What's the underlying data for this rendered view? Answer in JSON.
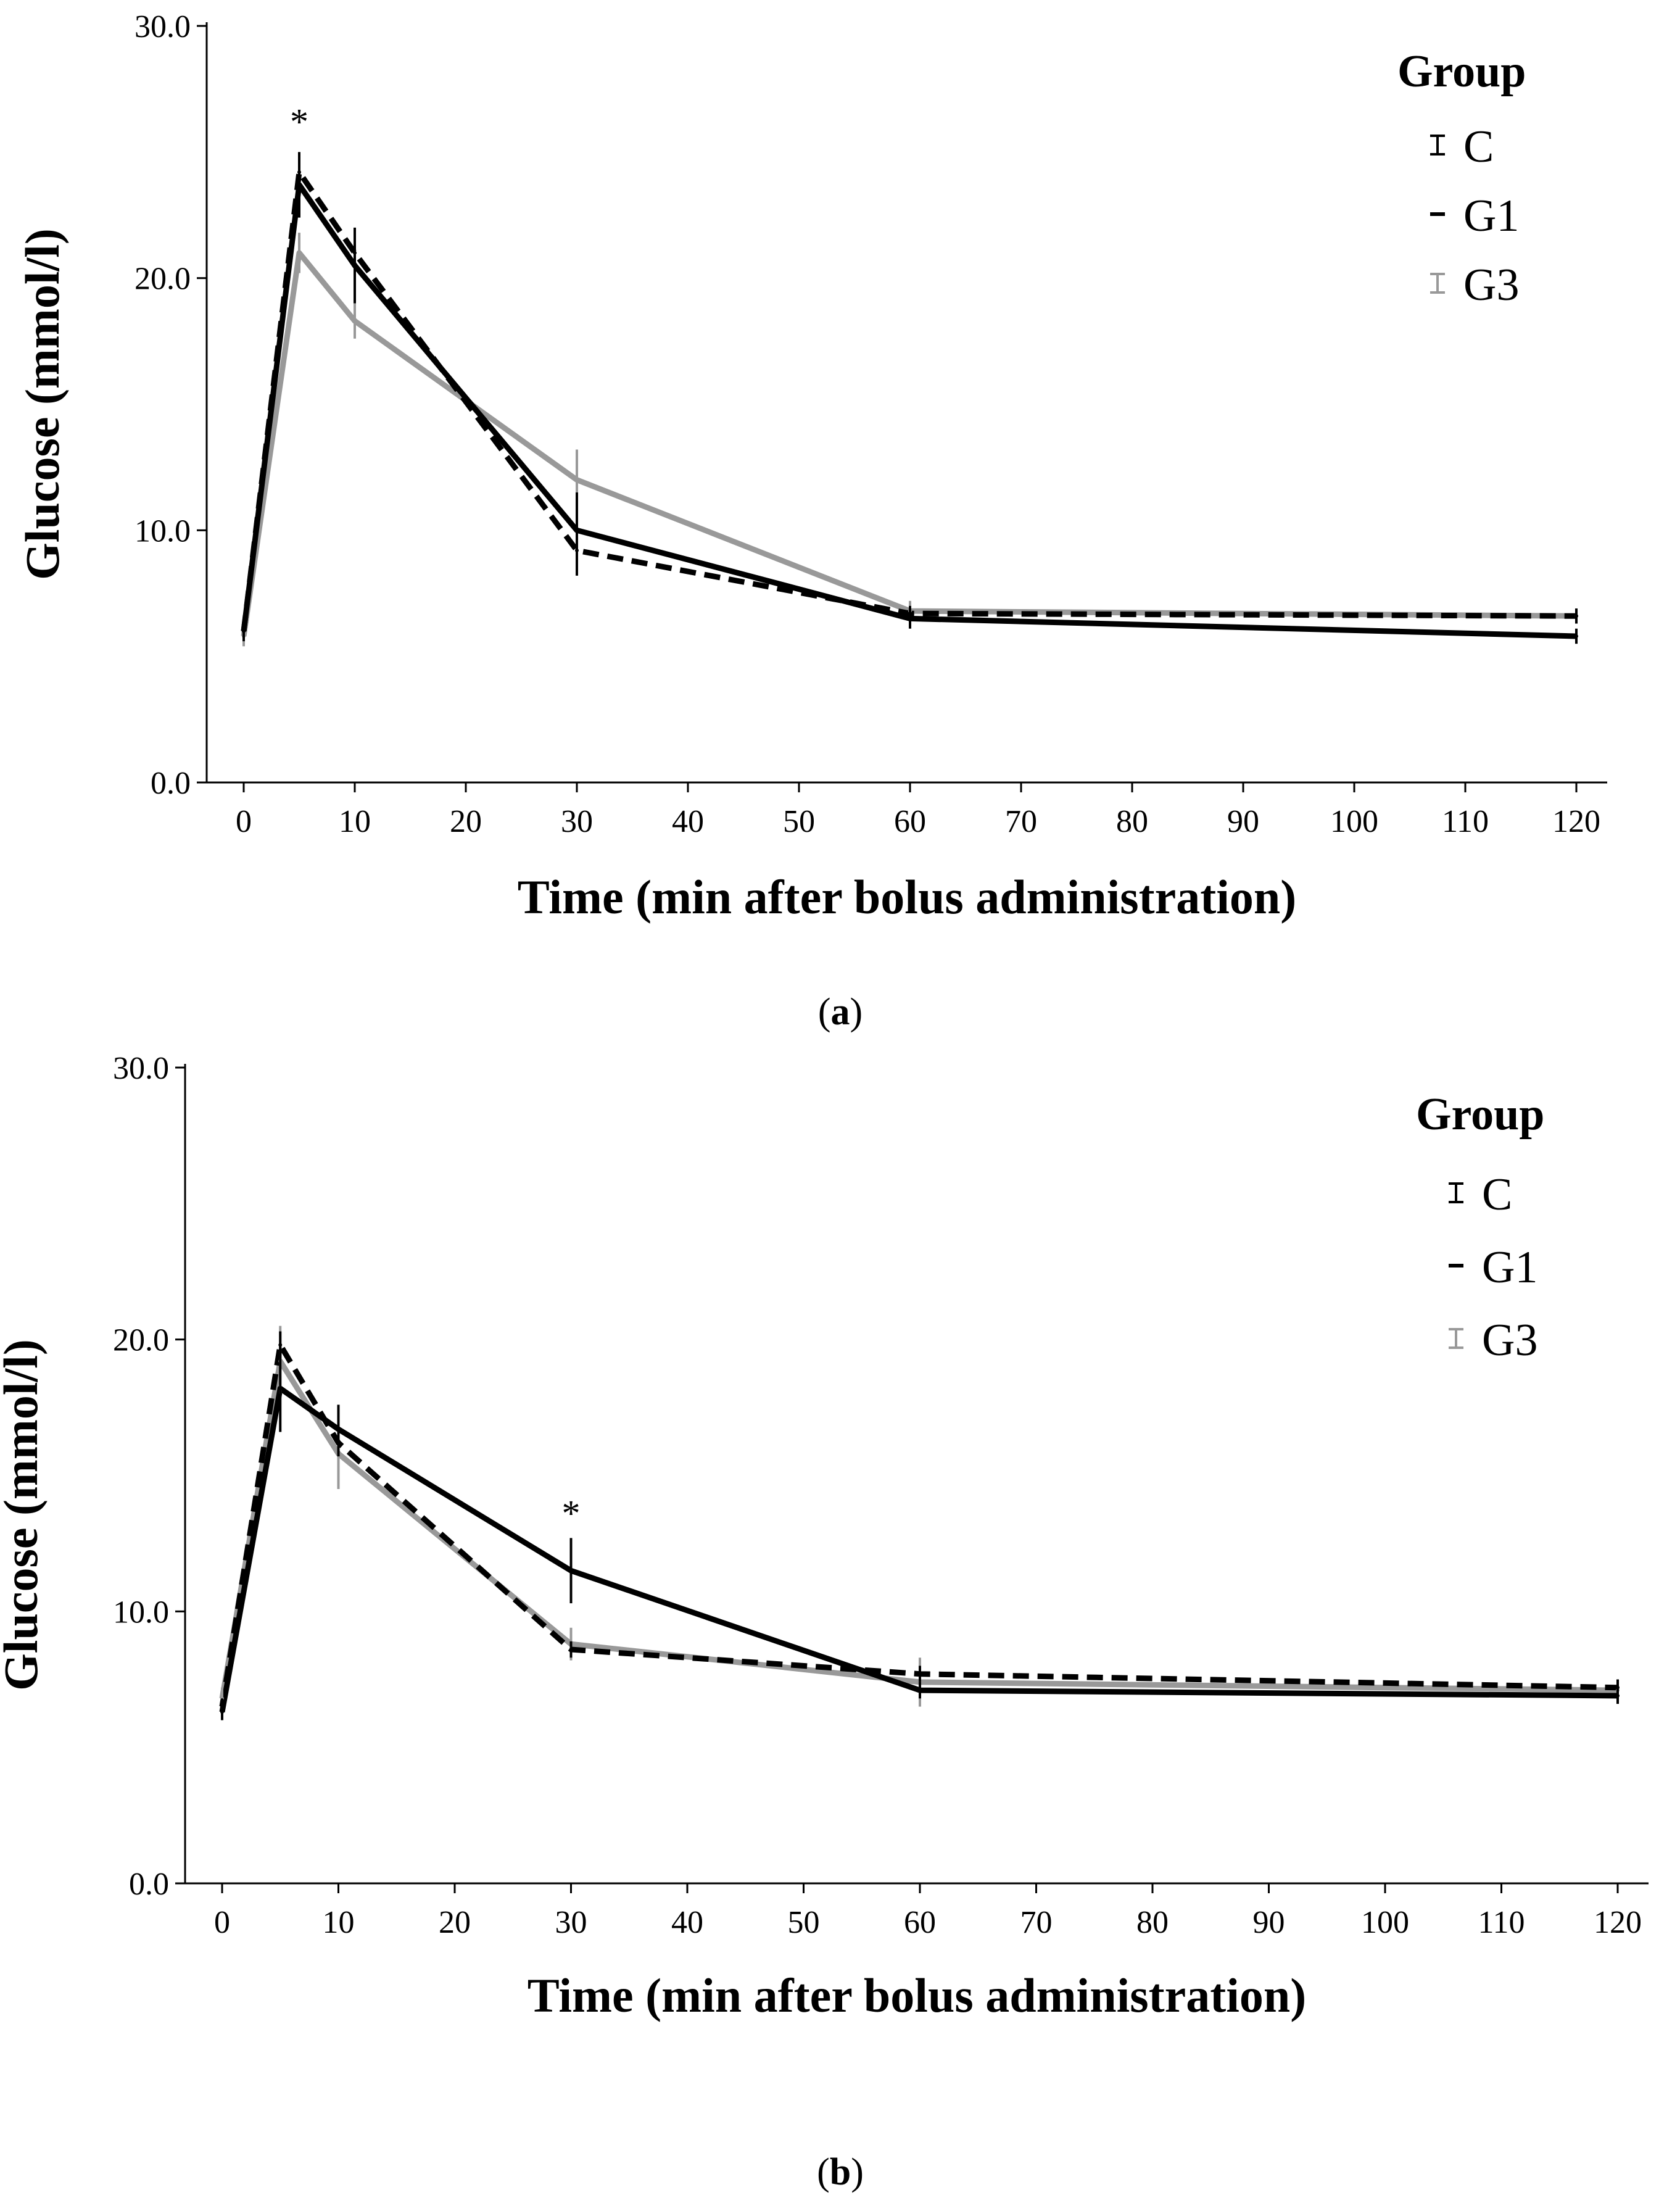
{
  "chart_data": [
    {
      "type": "line",
      "panel": "a",
      "caption_letter": "a",
      "xlabel": "Time (min after bolus administration)",
      "ylabel": "Glucose (mmol/l)",
      "xlim": [
        0,
        120
      ],
      "ylim": [
        0,
        30
      ],
      "x_ticks": [
        0,
        10,
        20,
        30,
        40,
        50,
        60,
        70,
        80,
        90,
        100,
        110,
        120
      ],
      "y_ticks": [
        "0.0",
        "10.0",
        "20.0",
        "30.0"
      ],
      "legend_title": "Group",
      "legend_position": "top-right",
      "series": [
        {
          "name": "C",
          "color": "#000000",
          "dash": "solid",
          "x": [
            0,
            5,
            10,
            30,
            60,
            120
          ],
          "values": [
            6.0,
            23.7,
            20.5,
            10.0,
            6.5,
            5.8
          ],
          "err_low": [
            5.6,
            22.4,
            19.0,
            8.2,
            6.1,
            5.5
          ],
          "err_high": [
            6.4,
            25.0,
            22.0,
            11.5,
            7.0,
            6.1
          ]
        },
        {
          "name": "G1",
          "color": "#000000",
          "dash": "dashed",
          "x": [
            0,
            5,
            10,
            30,
            60,
            120
          ],
          "values": [
            6.0,
            24.2,
            21.0,
            9.2,
            6.7,
            6.6
          ],
          "err_low": [
            5.7,
            23.5,
            20.3,
            8.8,
            6.4,
            6.3
          ],
          "err_high": [
            6.3,
            24.9,
            21.7,
            9.6,
            7.0,
            6.9
          ]
        },
        {
          "name": "G3",
          "color": "#999999",
          "dash": "solid",
          "x": [
            0,
            5,
            10,
            30,
            60,
            120
          ],
          "values": [
            5.8,
            21.0,
            18.3,
            12.0,
            6.8,
            6.6
          ],
          "err_low": [
            5.4,
            20.2,
            17.6,
            10.8,
            6.4,
            6.3
          ],
          "err_high": [
            6.2,
            21.8,
            19.0,
            13.2,
            7.2,
            6.9
          ]
        }
      ],
      "annotations": [
        {
          "text": "*",
          "x": 5,
          "y": 26.2
        }
      ]
    },
    {
      "type": "line",
      "panel": "b",
      "caption_letter": "b",
      "xlabel": "Time (min after bolus administration)",
      "ylabel": "Glucose (mmol/l)",
      "xlim": [
        0,
        120
      ],
      "ylim": [
        0,
        30
      ],
      "x_ticks": [
        0,
        10,
        20,
        30,
        40,
        50,
        60,
        70,
        80,
        90,
        100,
        110,
        120
      ],
      "y_ticks": [
        "0.0",
        "10.0",
        "20.0",
        "30.0"
      ],
      "legend_title": "Group",
      "legend_position": "top-right",
      "series": [
        {
          "name": "C",
          "color": "#000000",
          "dash": "solid",
          "x": [
            0,
            5,
            10,
            30,
            60,
            120
          ],
          "values": [
            6.3,
            18.2,
            16.7,
            11.5,
            7.1,
            6.9
          ],
          "err_low": [
            6.0,
            16.6,
            15.8,
            10.3,
            6.8,
            6.6
          ],
          "err_high": [
            6.6,
            19.8,
            17.6,
            12.7,
            7.4,
            7.2
          ]
        },
        {
          "name": "G1",
          "color": "#000000",
          "dash": "dashed",
          "x": [
            0,
            5,
            10,
            30,
            60,
            120
          ],
          "values": [
            6.5,
            19.8,
            16.2,
            8.6,
            7.7,
            7.2
          ],
          "err_low": [
            6.2,
            19.3,
            15.7,
            8.3,
            7.4,
            6.9
          ],
          "err_high": [
            6.8,
            20.3,
            16.7,
            8.9,
            8.0,
            7.5
          ]
        },
        {
          "name": "G3",
          "color": "#999999",
          "dash": "solid",
          "x": [
            0,
            5,
            10,
            30,
            60,
            120
          ],
          "values": [
            6.8,
            19.2,
            15.8,
            8.8,
            7.4,
            7.1
          ],
          "err_low": [
            6.4,
            18.0,
            14.5,
            8.2,
            6.5,
            6.8
          ],
          "err_high": [
            7.2,
            20.5,
            17.1,
            9.4,
            8.3,
            7.4
          ]
        }
      ],
      "annotations": [
        {
          "text": "*",
          "x": 30,
          "y": 13.6
        }
      ]
    }
  ]
}
